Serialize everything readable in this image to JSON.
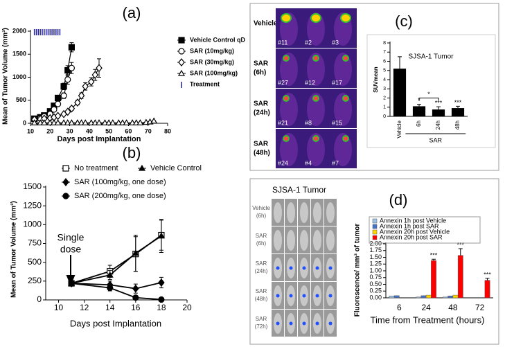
{
  "chart_data": [
    {
      "type": "line",
      "label": "(a)",
      "xlabel": "Days post Implantation",
      "ylabel": "Mean of Tumor Volume (mm³)",
      "xlim": [
        10,
        80
      ],
      "xticks": [
        10,
        20,
        30,
        40,
        50,
        60,
        70,
        80
      ],
      "ylim": [
        0,
        2000
      ],
      "yticks": [
        0,
        500,
        1000,
        1500,
        2000
      ],
      "series": [
        {
          "name": "Vehicle Control qD",
          "color": "#000000",
          "marker": "square",
          "filled": true,
          "x": [
            12,
            15,
            17,
            20,
            22,
            24,
            27,
            29,
            31
          ],
          "values": [
            100,
            130,
            170,
            260,
            380,
            550,
            800,
            1150,
            1650
          ],
          "errors": [
            10,
            15,
            20,
            30,
            40,
            50,
            70,
            100,
            100
          ]
        },
        {
          "name": "SAR (10mg/kg)",
          "color": "#000000",
          "marker": "circle",
          "filled": false,
          "x": [
            12,
            15,
            17,
            20,
            22,
            24,
            27,
            29,
            31
          ],
          "values": [
            90,
            110,
            150,
            200,
            300,
            420,
            600,
            950,
            1200
          ],
          "errors": [
            10,
            15,
            20,
            25,
            30,
            40,
            60,
            100,
            120
          ]
        },
        {
          "name": "SAR (30mg/kg)",
          "color": "#000000",
          "marker": "diamond",
          "filled": false,
          "x": [
            12,
            15,
            17,
            20,
            22,
            24,
            27,
            29,
            31,
            34,
            36,
            38,
            41,
            43,
            45
          ],
          "values": [
            80,
            90,
            100,
            110,
            130,
            160,
            200,
            250,
            320,
            450,
            600,
            800,
            900,
            1050,
            1200
          ],
          "errors": [
            10,
            10,
            10,
            15,
            15,
            20,
            25,
            30,
            40,
            50,
            60,
            80,
            90,
            120,
            200
          ]
        },
        {
          "name": "SAR (100mg/kg)",
          "color": "#000000",
          "marker": "triangle",
          "filled": false,
          "x": [
            12,
            15,
            17,
            20,
            22,
            24,
            27,
            29,
            31,
            34,
            36,
            38,
            41,
            43,
            45,
            48,
            50,
            52,
            55,
            57,
            59,
            62,
            64,
            66,
            69,
            71,
            73
          ],
          "values": [
            10,
            10,
            10,
            10,
            10,
            10,
            10,
            10,
            10,
            10,
            10,
            10,
            10,
            10,
            10,
            10,
            10,
            10,
            10,
            10,
            10,
            10,
            10,
            10,
            20,
            30,
            50
          ]
        },
        {
          "name": "Treatment",
          "color": "#1f1f9f",
          "marker": "vline",
          "line": false,
          "x": [
            12,
            13,
            14,
            15,
            16,
            17,
            18,
            19,
            20,
            21,
            22,
            23,
            24,
            25
          ],
          "values": [
            2000,
            2000,
            2000,
            2000,
            2000,
            2000,
            2000,
            2000,
            2000,
            2000,
            2000,
            2000,
            2000,
            2000
          ]
        }
      ]
    },
    {
      "type": "line",
      "label": "(b)",
      "xlabel": "Days post Implantation",
      "ylabel": "Mean of Tumor Volume (mm³)",
      "xlim": [
        9,
        20
      ],
      "xticks": [
        10,
        12,
        14,
        16,
        18,
        20
      ],
      "ylim": [
        0,
        1500
      ],
      "yticks": [
        0,
        250,
        500,
        750,
        1000,
        1250,
        1500
      ],
      "annotation": [
        "Single",
        "dose"
      ],
      "x": [
        11,
        14,
        16,
        18
      ],
      "series": [
        {
          "name": "No treatment",
          "color": "#000000",
          "marker": "square",
          "filled": false,
          "values": [
            220,
            380,
            610,
            860
          ],
          "errors": [
            10,
            80,
            230,
            200
          ]
        },
        {
          "name": "Vehicle Control",
          "color": "#000000",
          "marker": "triangle",
          "filled": true,
          "values": [
            220,
            330,
            620,
            850
          ],
          "errors": [
            10,
            60,
            240,
            220
          ]
        },
        {
          "name": "SAR (100mg/kg, one dose)",
          "color": "#000000",
          "marker": "diamond",
          "filled": true,
          "values": [
            220,
            200,
            150,
            230
          ],
          "errors": [
            10,
            50,
            60,
            70
          ]
        },
        {
          "name": "SAR (200mg/kg, one dose)",
          "color": "#000000",
          "marker": "circle",
          "filled": true,
          "values": [
            220,
            160,
            30,
            5
          ],
          "errors": [
            10,
            40,
            30,
            5
          ]
        }
      ]
    },
    {
      "type": "bar",
      "label": "(c)",
      "title": "SJSA-1 Tumor",
      "ylabel": "SUVmean",
      "group_label": "SAR",
      "categories": [
        "Vehicle",
        "6h",
        "24h",
        "48h"
      ],
      "ylim": [
        0,
        8
      ],
      "yticks": [
        0,
        1,
        2,
        3,
        4,
        5,
        6,
        7,
        8
      ],
      "series": [
        {
          "color": "#000000",
          "values": [
            5.2,
            1.1,
            0.75,
            0.9
          ],
          "errors": [
            1.3,
            0.2,
            0.3,
            0.2
          ],
          "annotations": [
            null,
            "*",
            "***",
            "***"
          ]
        }
      ],
      "bracket_label": "*"
    },
    {
      "type": "bar",
      "label": "(d)",
      "xlabel": "Time from Treatment (hours)",
      "ylabel": "Fluorescence/ mm³ of tumor",
      "categories": [
        "6",
        "24",
        "48",
        "72"
      ],
      "ylim": [
        0,
        2
      ],
      "yticks": [
        {
          "value": 0,
          "label": "0.00"
        },
        0.25,
        {
          "value": 0.5,
          "label": "0.50"
        },
        0.75,
        {
          "value": 1,
          "label": "1.00"
        },
        1.25,
        {
          "value": 1.5,
          "label": "1.50"
        },
        1.75,
        {
          "value": 2,
          "label": "2.00"
        }
      ],
      "series": [
        {
          "name": "Annexin 1h post Vehicle",
          "color": "#9dc3e6",
          "values": [
            0.07,
            0.03,
            0.03,
            null
          ]
        },
        {
          "name": "Annexin 1h post SAR",
          "color": "#4472c4",
          "values": [
            0.08,
            0.08,
            0.07,
            null
          ]
        },
        {
          "name": "Annexin 20h post Vehicle",
          "color": "#ffd700",
          "values": [
            null,
            0.1,
            0.1,
            null
          ]
        },
        {
          "name": "Annexin 20h post SAR",
          "color": "#ff0000",
          "values": [
            null,
            1.38,
            1.57,
            0.65
          ],
          "errors": [
            null,
            0.05,
            0.25,
            0.07
          ],
          "annotations": [
            null,
            "***",
            "***",
            "***"
          ]
        }
      ]
    }
  ],
  "pet_images": {
    "rows": [
      {
        "label": [
          "Vehicle"
        ],
        "ids": [
          "#11",
          "#2",
          "#3"
        ]
      },
      {
        "label": [
          "SAR",
          "(6h)"
        ],
        "ids": [
          "#27",
          "#12",
          "#17"
        ]
      },
      {
        "label": [
          "SAR",
          "(24h)"
        ],
        "ids": [
          "#21",
          "#8",
          "#15"
        ]
      },
      {
        "label": [
          "SAR",
          "(48h)"
        ],
        "ids": [
          "#24",
          "#4",
          "#7"
        ]
      }
    ]
  },
  "fluorescence_images": {
    "title": "SJSA-1 Tumor",
    "rows": [
      [
        "Vehicle",
        "(6h)"
      ],
      [
        "SAR",
        "(6h)"
      ],
      [
        "SAR",
        "(24h)"
      ],
      [
        "SAR",
        "(48h)"
      ],
      [
        "SAR",
        "(72h)"
      ]
    ]
  }
}
